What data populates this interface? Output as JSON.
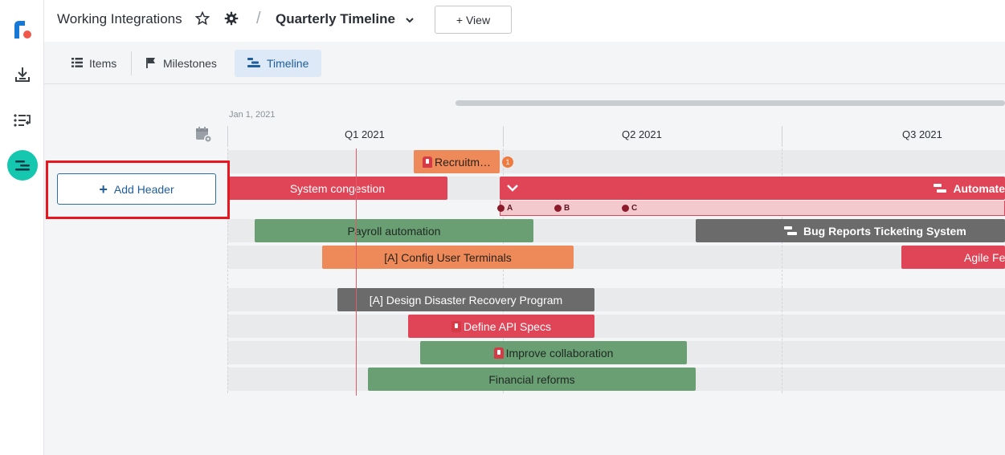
{
  "header": {
    "workspace_title": "Working Integrations",
    "separator": "/",
    "view_name": "Quarterly Timeline",
    "add_view_label": "+ View"
  },
  "tabs": [
    {
      "label": "Items",
      "icon": "list-icon",
      "active": false
    },
    {
      "label": "Milestones",
      "icon": "flag-icon",
      "active": false
    },
    {
      "label": "Timeline",
      "icon": "timeline-icon",
      "active": true
    }
  ],
  "timeline": {
    "start_date": "Jan 1, 2021",
    "quarters": [
      "Q1 2021",
      "Q2 2021",
      "Q3 2021"
    ]
  },
  "sidebar": {
    "add_header_label": "Add Header"
  },
  "bars": {
    "recruitment": "Recruitm…",
    "recruitment_badge": "1",
    "system_congestion": "System congestion",
    "automate": "Automate",
    "payroll": "Payroll automation",
    "bug_reports": "Bug Reports Ticketing System",
    "config_terminals": "[A] Config User Terminals",
    "agile": "Agile Fe",
    "disaster_recovery": "[A] Design Disaster Recovery Program",
    "api_specs": "Define API Specs",
    "collaboration": "Improve collaboration",
    "financial": "Financial reforms"
  },
  "milestones": [
    "A",
    "B",
    "C"
  ],
  "colors": {
    "accent": "#1f5d9c",
    "red": "#e04457",
    "green": "#6a9e73",
    "orange": "#ee8a5a",
    "gray": "#6b6b6b",
    "highlight": "#e8161f"
  }
}
